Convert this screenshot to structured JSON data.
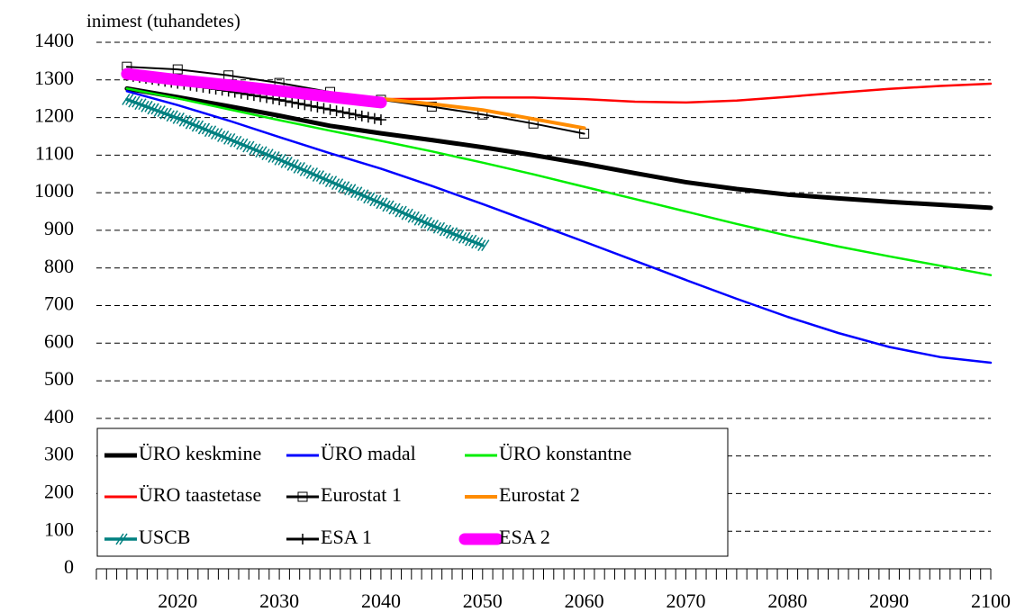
{
  "chart_data": {
    "type": "line",
    "ylabel": "inimest (tuhandetes)",
    "xlabel": "",
    "xlim": [
      2012,
      2100
    ],
    "ylim": [
      0,
      1400
    ],
    "x_ticks": [
      "2020",
      "2030",
      "2040",
      "2050",
      "2060",
      "2070",
      "2080",
      "2090",
      "2100"
    ],
    "y_ticks": [
      "0",
      "100",
      "200",
      "300",
      "400",
      "500",
      "600",
      "700",
      "800",
      "900",
      "1000",
      "1100",
      "1200",
      "1300",
      "1400"
    ],
    "grid": "horizontal dashed",
    "legend_position": "bottom-left",
    "series": [
      {
        "name": "ÜRO keskmine",
        "color": "#000000",
        "x": [
          2015,
          2020,
          2025,
          2030,
          2035,
          2040,
          2045,
          2050,
          2055,
          2060,
          2065,
          2070,
          2075,
          2080,
          2085,
          2090,
          2095,
          2100
        ],
        "values": [
          1277,
          1254,
          1230,
          1205,
          1178,
          1158,
          1140,
          1121,
          1100,
          1077,
          1052,
          1028,
          1010,
          995,
          985,
          976,
          968,
          960
        ]
      },
      {
        "name": "ÜRO madal",
        "color": "#0000ff",
        "x": [
          2015,
          2020,
          2025,
          2030,
          2035,
          2040,
          2045,
          2050,
          2055,
          2060,
          2065,
          2070,
          2075,
          2080,
          2085,
          2090,
          2095,
          2100
        ],
        "values": [
          1270,
          1233,
          1192,
          1148,
          1105,
          1064,
          1018,
          970,
          920,
          870,
          819,
          768,
          718,
          670,
          627,
          590,
          563,
          548
        ]
      },
      {
        "name": "ÜRO konstantne",
        "color": "#00ee00",
        "x": [
          2015,
          2020,
          2025,
          2030,
          2035,
          2040,
          2045,
          2050,
          2055,
          2060,
          2065,
          2070,
          2075,
          2080,
          2085,
          2090,
          2095,
          2100
        ],
        "values": [
          1277,
          1251,
          1222,
          1193,
          1165,
          1138,
          1110,
          1080,
          1049,
          1016,
          983,
          950,
          917,
          886,
          857,
          831,
          806,
          781
        ]
      },
      {
        "name": "ÜRO taastetase",
        "color": "#ff0000",
        "x": [
          2015,
          2020,
          2025,
          2030,
          2035,
          2040,
          2045,
          2050,
          2055,
          2060,
          2065,
          2070,
          2075,
          2080,
          2085,
          2090,
          2095,
          2100
        ],
        "values": [
          1310,
          1298,
          1284,
          1268,
          1256,
          1249,
          1250,
          1253,
          1253,
          1249,
          1242,
          1240,
          1245,
          1255,
          1266,
          1276,
          1284,
          1290
        ]
      },
      {
        "name": "Eurostat 1",
        "color": "#000000",
        "marker": "open-square",
        "x": [
          2015,
          2020,
          2025,
          2030,
          2035,
          2040,
          2045,
          2050,
          2055,
          2060
        ],
        "values": [
          1335,
          1328,
          1312,
          1292,
          1268,
          1247,
          1229,
          1208,
          1184,
          1157
        ]
      },
      {
        "name": "Eurostat 2",
        "color": "#ff8c00",
        "x": [
          2015,
          2020,
          2025,
          2030,
          2035,
          2040,
          2045,
          2050,
          2055,
          2060
        ],
        "values": [
          1322,
          1307,
          1290,
          1274,
          1261,
          1250,
          1236,
          1220,
          1196,
          1172
        ]
      },
      {
        "name": "USCB",
        "color": "#008080",
        "marker": "hash",
        "x": [
          2015,
          2020,
          2025,
          2030,
          2035,
          2040,
          2045,
          2050
        ],
        "values": [
          1248,
          1198,
          1143,
          1088,
          1030,
          972,
          913,
          860
        ]
      },
      {
        "name": "ESA 1",
        "color": "#000000",
        "marker": "plus",
        "x": [
          2015,
          2020,
          2025,
          2030,
          2035,
          2040
        ],
        "values": [
          1312,
          1291,
          1270,
          1247,
          1221,
          1194
        ]
      },
      {
        "name": "ESA 2",
        "color": "#ff00ff",
        "marker": "thick",
        "x": [
          2015,
          2020,
          2025,
          2030,
          2035,
          2040
        ],
        "values": [
          1316,
          1300,
          1286,
          1271,
          1255,
          1240
        ]
      }
    ]
  }
}
